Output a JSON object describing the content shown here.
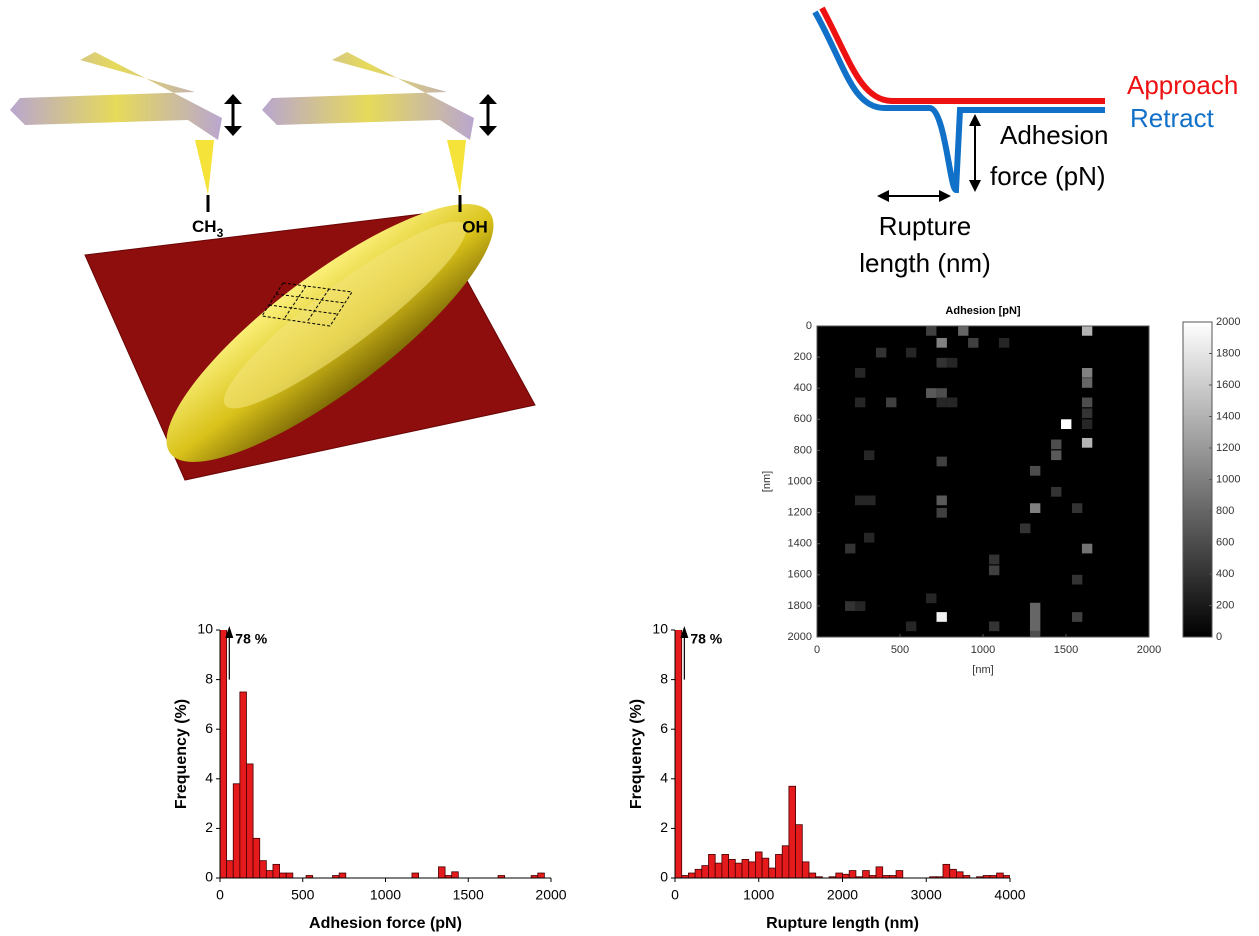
{
  "diagram": {
    "left_tip": {
      "main": "CH",
      "sub": "3"
    },
    "right_tip": "OH",
    "approach": "Approach",
    "retract": "Retract",
    "approach_color": "#ee1111",
    "retract_color": "#1170c8",
    "adhesion_label": [
      "Adhesion",
      "force (pN)"
    ],
    "rupture_label": [
      "Rupture",
      "length (nm)"
    ]
  },
  "chart_data": [
    {
      "type": "histogram",
      "xlabel": "Adhesion force (pN)",
      "ylabel": "Frequency (%)",
      "color": "#e41a1c",
      "bins": [
        0,
        40,
        80,
        120,
        160,
        200,
        240,
        280,
        320,
        360,
        400,
        440,
        480,
        520,
        560,
        600,
        640,
        680,
        720,
        760,
        800,
        840,
        880,
        920,
        960,
        1000,
        1040,
        1080,
        1120,
        1160,
        1200,
        1240,
        1280,
        1320,
        1360,
        1400,
        1440,
        1480,
        1520,
        1560,
        1600,
        1640,
        1680,
        1720,
        1760,
        1800,
        1840,
        1880,
        1920,
        1960,
        2000
      ],
      "values": [
        78,
        0.7,
        3.8,
        7.5,
        4.6,
        1.6,
        0.7,
        0.3,
        0.55,
        0.2,
        0.2,
        0,
        0,
        0.1,
        0,
        0,
        0,
        0.1,
        0.2,
        0,
        0,
        0,
        0,
        0,
        0,
        0,
        0,
        0,
        0,
        0.2,
        0,
        0,
        0,
        0.45,
        0.1,
        0.25,
        0,
        0,
        0,
        0,
        0,
        0,
        0.1,
        0,
        0,
        0,
        0,
        0.1,
        0.2,
        0
      ],
      "value_labels": [
        "78 %",
        null,
        null,
        null,
        null,
        null,
        null,
        null,
        null,
        null,
        null,
        null,
        null,
        null,
        null,
        null,
        null,
        null,
        null,
        null,
        null,
        null,
        null,
        null,
        null,
        null,
        null,
        null,
        null,
        null,
        null,
        null,
        null,
        null,
        null,
        null,
        null,
        null,
        null,
        null,
        null,
        null,
        null,
        null,
        null,
        null,
        null,
        null,
        null,
        null
      ],
      "xlim": [
        0,
        2000
      ],
      "xticks": [
        0,
        500,
        1000,
        1500,
        2000
      ],
      "ylim": [
        0,
        10
      ],
      "yticks": [
        0,
        2,
        4,
        6,
        8,
        10
      ]
    },
    {
      "type": "histogram",
      "xlabel": "Rupture length (nm)",
      "ylabel": "Frequency (%)",
      "color": "#e41a1c",
      "bins": [
        0,
        80,
        160,
        240,
        320,
        400,
        480,
        560,
        640,
        720,
        800,
        880,
        960,
        1040,
        1120,
        1200,
        1280,
        1360,
        1440,
        1520,
        1600,
        1680,
        1760,
        1840,
        1920,
        2000,
        2080,
        2160,
        2240,
        2320,
        2400,
        2480,
        2560,
        2640,
        2720,
        2800,
        2880,
        2960,
        3040,
        3120,
        3200,
        3280,
        3360,
        3440,
        3520,
        3600,
        3680,
        3760,
        3840,
        3920,
        4000
      ],
      "values": [
        78,
        0.1,
        0.2,
        0.35,
        0.5,
        0.95,
        0.6,
        0.95,
        0.75,
        0.6,
        0.75,
        0.65,
        1.05,
        0.8,
        0.4,
        0.95,
        1.3,
        3.7,
        2.15,
        0.65,
        0.2,
        0.05,
        0,
        0.05,
        0.2,
        0.15,
        0.3,
        0.05,
        0.3,
        0.1,
        0.45,
        0.1,
        0.1,
        0.3,
        0,
        0,
        0,
        0,
        0.05,
        0.05,
        0.55,
        0.35,
        0.25,
        0.1,
        0,
        0.05,
        0.1,
        0.1,
        0.2,
        0.1
      ],
      "value_labels": [
        "78 %",
        null,
        null,
        null,
        null,
        null,
        null,
        null,
        null,
        null,
        null,
        null,
        null,
        null,
        null,
        null,
        null,
        null,
        null,
        null,
        null,
        null,
        null,
        null,
        null,
        null,
        null,
        null,
        null,
        null,
        null,
        null,
        null,
        null,
        null,
        null,
        null,
        null,
        null,
        null,
        null,
        null,
        null,
        null,
        null,
        null,
        null,
        null,
        null,
        null
      ],
      "xlim": [
        0,
        4000
      ],
      "xticks": [
        0,
        1000,
        2000,
        3000,
        4000
      ],
      "ylim": [
        0,
        10
      ],
      "yticks": [
        0,
        2,
        4,
        6,
        8,
        10
      ]
    },
    {
      "type": "heatmap",
      "title": "Adhesion [pN]",
      "xlabel": "[nm]",
      "ylabel": "[nm]",
      "colormap": "gray",
      "x": [
        657,
        720,
        850,
        910,
        1096,
        1596,
        355,
        536,
        720,
        783,
        229,
        1596,
        1596,
        657,
        720,
        1596,
        229,
        416,
        720,
        783,
        1596,
        1470,
        1596,
        1410,
        1596,
        1410,
        283,
        720,
        1283,
        1410,
        1283,
        1536,
        229,
        290,
        720,
        720,
        1223,
        283,
        169,
        1596,
        1036,
        1036,
        1536,
        657,
        169,
        229,
        1283,
        1283,
        1283,
        1283,
        720,
        1536,
        536,
        1036
      ],
      "y": [
        0,
        77,
        0,
        77,
        77,
        0,
        140,
        140,
        205,
        205,
        270,
        270,
        335,
        400,
        400,
        460,
        460,
        460,
        460,
        460,
        530,
        600,
        600,
        730,
        720,
        800,
        800,
        840,
        900,
        1035,
        1140,
        1140,
        1090,
        1090,
        1090,
        1170,
        1270,
        1330,
        1400,
        1400,
        1470,
        1540,
        1600,
        1720,
        1770,
        1770,
        1780,
        1840,
        1900,
        1960,
        1840,
        1840,
        1900,
        1900
      ],
      "values": [
        500,
        1000,
        800,
        500,
        300,
        1400,
        400,
        300,
        400,
        300,
        300,
        1000,
        800,
        700,
        600,
        600,
        300,
        500,
        300,
        300,
        400,
        2000,
        300,
        600,
        1400,
        700,
        300,
        500,
        600,
        400,
        1000,
        400,
        300,
        300,
        700,
        500,
        400,
        300,
        400,
        900,
        400,
        500,
        400,
        300,
        400,
        300,
        800,
        800,
        800,
        600,
        1900,
        500,
        300,
        400
      ],
      "xlim": [
        0,
        2000
      ],
      "xticks": [
        0,
        500,
        1000,
        1500,
        2000
      ],
      "ylim": [
        2000,
        0
      ],
      "yticks": [
        0,
        200,
        400,
        600,
        800,
        1000,
        1200,
        1400,
        1600,
        1800,
        2000
      ],
      "clim": [
        0,
        2000
      ],
      "cticks": [
        0,
        200,
        400,
        600,
        800,
        1000,
        1200,
        1400,
        1600,
        1800,
        2000
      ]
    }
  ]
}
